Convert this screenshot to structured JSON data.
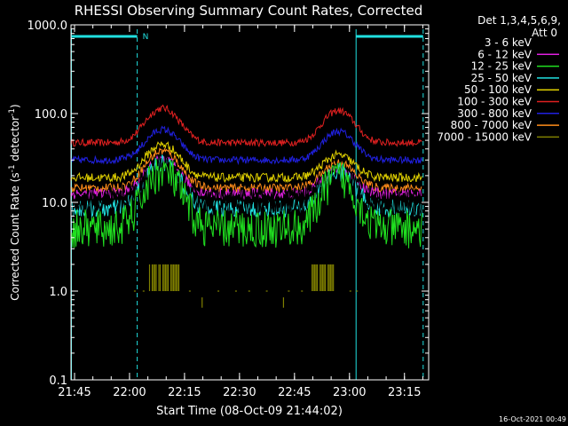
{
  "chart_data": {
    "type": "line",
    "title": "RHESSI Observing Summary Count Rates, Corrected",
    "xlabel": "Start Time (08-Oct-09 21:44:02)",
    "ylabel": "Corrected Count Rate (s",
    "ylabel_sup1": "-1",
    "ylabel_mid": " detector",
    "ylabel_sup2": "-1",
    "ylabel_end": ")",
    "yscale": "log",
    "ylim": [
      0.1,
      1000
    ],
    "xlim_minutes": [
      21.73,
      23.35
    ],
    "x_ticks": [
      "21:45",
      "22:00",
      "22:15",
      "22:30",
      "22:45",
      "23:00",
      "23:15"
    ],
    "x_tick_hours": [
      21.75,
      22.0,
      22.25,
      22.5,
      22.75,
      23.0,
      23.25
    ],
    "y_ticks": [
      "1000.0",
      "100.0",
      "10.0",
      "1.0",
      "0.1"
    ],
    "y_tick_values": [
      1000,
      100,
      10,
      1,
      0.1
    ],
    "legend_header": [
      "Det 1,3,4,5,6,9,",
      "Att 0"
    ],
    "legend_placement": "right",
    "timestamp": "16-Oct-2021 00:49",
    "flag_label": "N",
    "night_intervals": [
      [
        21.736,
        22.035
      ],
      [
        23.03,
        23.335
      ]
    ],
    "series": [
      {
        "name": "3 - 6 keV",
        "color": "#000000",
        "base": 10.0,
        "peak1": 25,
        "peak2": 19,
        "noise": 0.18
      },
      {
        "name": "6 - 12 keV",
        "color": "#e020e0",
        "base": 12.5,
        "peak1": 30,
        "peak2": 24,
        "noise": 0.06
      },
      {
        "name": "12 - 25 keV",
        "color": "#20e020",
        "base": 5.0,
        "peak1": 22,
        "peak2": 19,
        "noise": 0.22
      },
      {
        "name": "25 - 50 keV",
        "color": "#20e0e0",
        "base": 8.5,
        "peak1": 28,
        "peak2": 22,
        "noise": 0.1
      },
      {
        "name": "50 - 100 keV",
        "color": "#e0d000",
        "base": 19.0,
        "peak1": 45,
        "peak2": 34,
        "noise": 0.05
      },
      {
        "name": "100 - 300 keV",
        "color": "#e02020",
        "base": 47.0,
        "peak1": 115,
        "peak2": 108,
        "noise": 0.04
      },
      {
        "name": "300 - 800 keV",
        "color": "#2020e0",
        "base": 30.0,
        "peak1": 66,
        "peak2": 63,
        "noise": 0.04
      },
      {
        "name": "800 - 7000 keV",
        "color": "#ff8c1a",
        "base": 14.5,
        "peak1": 38,
        "peak2": 28,
        "noise": 0.05
      },
      {
        "name": "7000 - 15000 keV",
        "color": "#808000",
        "base": 0,
        "peak1": 0,
        "peak2": 0,
        "noise": 0
      }
    ],
    "peak_hours": [
      22.15,
      22.95
    ],
    "olive_bursts": [
      [
        22.085,
        22.235
      ],
      [
        22.83,
        22.93
      ]
    ],
    "olive_burst_level": [
      1.0,
      2.0
    ]
  }
}
